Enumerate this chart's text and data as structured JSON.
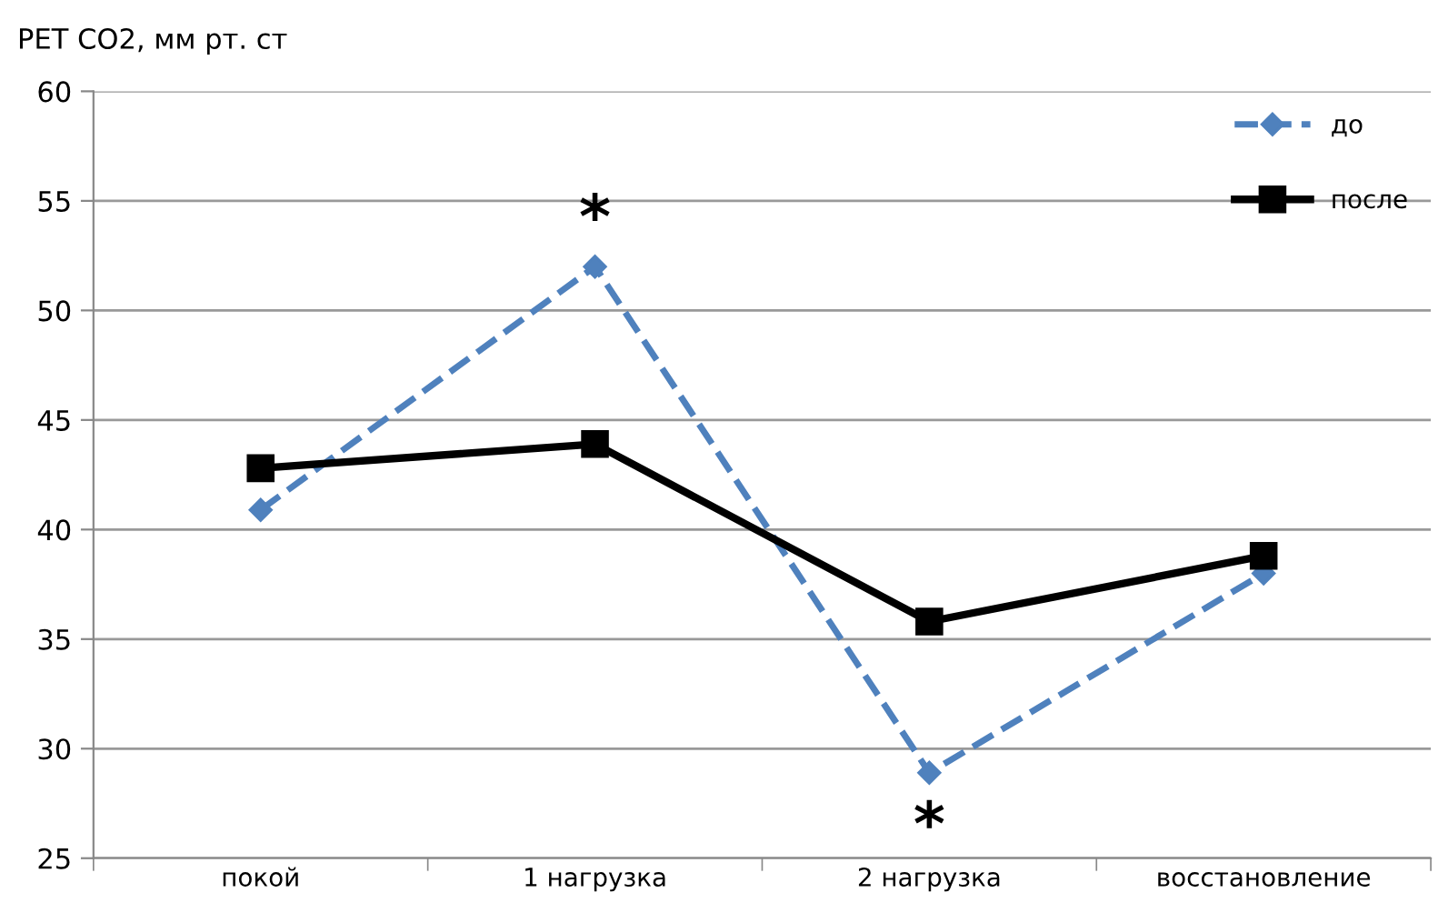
{
  "chart_data": {
    "type": "line",
    "ylabel": "PET CO2, мм рт. ст",
    "categories": [
      "покой",
      "1 нагрузка",
      "2 нагрузка",
      "восстановление"
    ],
    "series": [
      {
        "name": "до",
        "color": "#4f81bd",
        "values": [
          40.9,
          52,
          28.9,
          38
        ],
        "marker": "diamond",
        "line_style": "dashed"
      },
      {
        "name": "после",
        "color": "#000000",
        "values": [
          42.8,
          43.9,
          35.8,
          38.8
        ],
        "marker": "square",
        "line_style": "solid"
      }
    ],
    "annotations": [
      {
        "text": "*",
        "x": "1 нагрузка",
        "y": 52
      },
      {
        "text": "*",
        "x": "2 нагрузка",
        "y": 28.9
      }
    ],
    "ylim": [
      25,
      60
    ],
    "yticks": [
      25,
      30,
      35,
      40,
      45,
      50,
      55,
      60
    ],
    "grid": "y",
    "legend": "top right"
  }
}
